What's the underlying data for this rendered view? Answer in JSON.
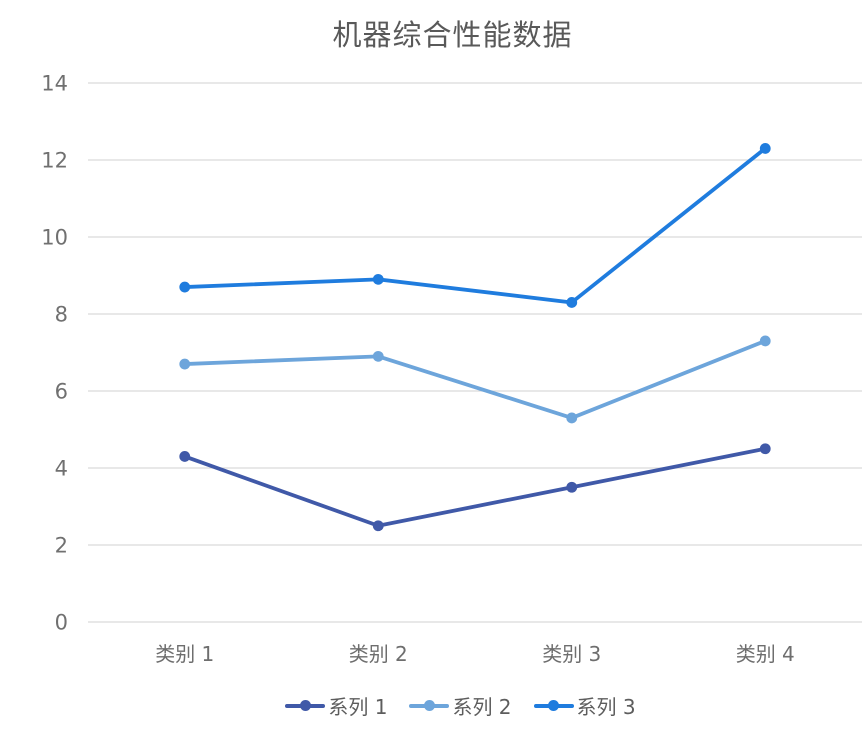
{
  "chart_data": {
    "type": "line",
    "title": "机器综合性能数据",
    "categories": [
      "类别 1",
      "类别 2",
      "类别 3",
      "类别 4"
    ],
    "series": [
      {
        "name": "系列 1",
        "color": "#4059A8",
        "values": [
          4.3,
          2.5,
          3.5,
          4.5
        ]
      },
      {
        "name": "系列 2",
        "color": "#6DA5DB",
        "values": [
          6.7,
          6.9,
          5.3,
          7.3
        ]
      },
      {
        "name": "系列 3",
        "color": "#1F7CDE",
        "values": [
          8.7,
          8.9,
          8.3,
          12.3
        ]
      }
    ],
    "yticks": [
      0,
      2,
      4,
      6,
      8,
      10,
      12,
      14
    ],
    "ylim": [
      0,
      14
    ],
    "grid": true,
    "legend_position": "bottom",
    "colors": {
      "gridline": "#D9D9D9",
      "tick_label": "#707070",
      "category_label": "#6e6e6e",
      "title": "#595959",
      "background": "#ffffff"
    }
  }
}
